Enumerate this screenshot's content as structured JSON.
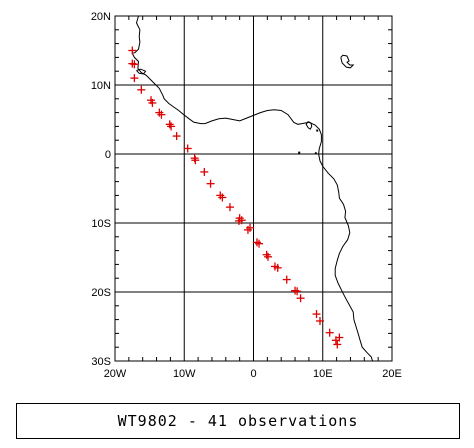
{
  "chart_data": {
    "type": "scatter",
    "title": "WT9802 - 41 observations",
    "xlabel": "",
    "ylabel": "",
    "xlim": [
      -20,
      20
    ],
    "ylim": [
      -30,
      20
    ],
    "grid": true,
    "xticks": [
      {
        "value": -20,
        "label": "20W"
      },
      {
        "value": -10,
        "label": "10W"
      },
      {
        "value": 0,
        "label": "0"
      },
      {
        "value": 10,
        "label": "10E"
      },
      {
        "value": 20,
        "label": "20E"
      }
    ],
    "yticks": [
      {
        "value": 20,
        "label": "20N"
      },
      {
        "value": 10,
        "label": "10N"
      },
      {
        "value": 0,
        "label": "0"
      },
      {
        "value": -10,
        "label": "10S"
      },
      {
        "value": -20,
        "label": "20S"
      },
      {
        "value": -30,
        "label": "30S"
      }
    ],
    "marker_color": "#dd0000",
    "series": [
      {
        "marker": "plus",
        "points": [
          [
            -17.5,
            15.0
          ],
          [
            -17.5,
            13.1
          ],
          [
            -17.2,
            13.0
          ],
          [
            -17.2,
            11.0
          ],
          [
            -16.2,
            9.3
          ],
          [
            -14.8,
            7.8
          ],
          [
            -14.6,
            7.4
          ],
          [
            -13.6,
            6.0
          ],
          [
            -13.3,
            5.7
          ],
          [
            -12.1,
            4.3
          ],
          [
            -11.9,
            4.0
          ],
          [
            -11.1,
            2.6
          ],
          [
            -9.5,
            0.8
          ],
          [
            -8.5,
            -0.6
          ],
          [
            -8.4,
            -0.9
          ],
          [
            -7.1,
            -2.6
          ],
          [
            -6.2,
            -4.3
          ],
          [
            -4.8,
            -6.0
          ],
          [
            -4.5,
            -6.3
          ],
          [
            -3.4,
            -7.7
          ],
          [
            -2.0,
            -9.3
          ],
          [
            -1.7,
            -9.6
          ],
          [
            -0.8,
            -11.0
          ],
          [
            0.5,
            -12.8
          ],
          [
            0.8,
            -13.0
          ],
          [
            1.9,
            -14.6
          ],
          [
            2.1,
            -14.9
          ],
          [
            3.1,
            -16.3
          ],
          [
            3.5,
            -16.5
          ],
          [
            4.8,
            -18.2
          ],
          [
            6.0,
            -19.8
          ],
          [
            6.3,
            -19.9
          ],
          [
            6.8,
            -20.9
          ],
          [
            9.1,
            -23.2
          ],
          [
            9.6,
            -24.2
          ],
          [
            11.0,
            -25.9
          ],
          [
            11.9,
            -27.0
          ],
          [
            12.1,
            -27.6
          ],
          [
            -2.1,
            -9.7
          ],
          [
            -0.5,
            -10.7
          ],
          [
            12.4,
            -26.6
          ]
        ]
      }
    ],
    "coastlines": [
      [
        [
          -16.6,
          20.0
        ],
        [
          -16.9,
          19.0
        ],
        [
          -16.4,
          18.0
        ],
        [
          -16.5,
          17.0
        ],
        [
          -16.4,
          16.2
        ],
        [
          -16.6,
          15.2
        ],
        [
          -17.1,
          14.7
        ],
        [
          -17.5,
          14.6
        ],
        [
          -17.2,
          14.0
        ],
        [
          -16.6,
          13.4
        ],
        [
          -16.7,
          12.4
        ],
        [
          -16.2,
          11.8
        ],
        [
          -15.5,
          11.4
        ],
        [
          -14.6,
          10.5
        ],
        [
          -13.6,
          9.5
        ],
        [
          -13.1,
          8.5
        ],
        [
          -12.9,
          8.0
        ],
        [
          -12.2,
          7.3
        ],
        [
          -11.5,
          6.8
        ],
        [
          -10.8,
          6.3
        ],
        [
          -10.2,
          5.8
        ],
        [
          -9.3,
          5.1
        ],
        [
          -8.6,
          4.6
        ],
        [
          -7.6,
          4.4
        ],
        [
          -7.0,
          4.4
        ],
        [
          -6.0,
          4.8
        ],
        [
          -5.0,
          5.1
        ],
        [
          -4.0,
          5.2
        ],
        [
          -3.0,
          5.0
        ],
        [
          -2.0,
          4.8
        ],
        [
          -1.0,
          5.2
        ],
        [
          0.0,
          5.6
        ],
        [
          1.0,
          6.0
        ],
        [
          2.0,
          6.3
        ],
        [
          3.0,
          6.4
        ],
        [
          4.0,
          6.3
        ],
        [
          5.0,
          5.7
        ],
        [
          5.8,
          4.6
        ],
        [
          6.4,
          4.3
        ],
        [
          7.0,
          4.4
        ],
        [
          8.0,
          4.6
        ],
        [
          8.9,
          4.2
        ],
        [
          9.5,
          3.6
        ],
        [
          9.8,
          2.8
        ],
        [
          9.8,
          1.8
        ],
        [
          9.5,
          0.8
        ],
        [
          9.4,
          0.0
        ],
        [
          9.6,
          -1.0
        ],
        [
          10.0,
          -1.8
        ],
        [
          10.8,
          -2.8
        ],
        [
          11.6,
          -3.6
        ],
        [
          12.1,
          -4.5
        ],
        [
          12.3,
          -5.5
        ],
        [
          12.4,
          -6.4
        ],
        [
          13.0,
          -7.3
        ],
        [
          13.3,
          -8.3
        ],
        [
          13.2,
          -9.2
        ],
        [
          13.7,
          -10.4
        ],
        [
          13.9,
          -11.4
        ],
        [
          13.6,
          -12.4
        ],
        [
          12.9,
          -13.4
        ],
        [
          12.4,
          -14.4
        ],
        [
          12.1,
          -15.4
        ],
        [
          11.8,
          -16.6
        ],
        [
          11.8,
          -17.6
        ],
        [
          12.2,
          -18.7
        ],
        [
          12.8,
          -19.9
        ],
        [
          13.3,
          -20.9
        ],
        [
          13.9,
          -22.0
        ],
        [
          14.4,
          -22.9
        ],
        [
          14.5,
          -24.0
        ],
        [
          14.8,
          -25.0
        ],
        [
          15.1,
          -26.0
        ],
        [
          15.4,
          -27.0
        ],
        [
          15.7,
          -28.0
        ],
        [
          16.4,
          -28.8
        ],
        [
          17.0,
          -29.4
        ],
        [
          17.2,
          -30.0
        ]
      ],
      [
        [
          -16.9,
          12.1
        ],
        [
          -16.3,
          12.3
        ],
        [
          -15.6,
          12.0
        ],
        [
          -15.9,
          11.6
        ],
        [
          -16.5,
          11.7
        ],
        [
          -16.9,
          12.1
        ]
      ],
      [
        [
          7.9,
          4.7
        ],
        [
          8.3,
          4.5
        ],
        [
          8.4,
          4.0
        ],
        [
          8.2,
          3.6
        ],
        [
          7.9,
          3.8
        ],
        [
          7.6,
          4.3
        ],
        [
          7.9,
          4.7
        ]
      ],
      [
        [
          12.6,
          14.0
        ],
        [
          12.9,
          14.3
        ],
        [
          13.5,
          14.2
        ],
        [
          13.8,
          13.5
        ],
        [
          13.5,
          13.3
        ],
        [
          13.9,
          12.9
        ],
        [
          14.4,
          12.9
        ],
        [
          14.0,
          12.5
        ],
        [
          13.4,
          12.6
        ],
        [
          12.8,
          13.2
        ],
        [
          12.6,
          14.0
        ]
      ]
    ],
    "island_dots": [
      [
        6.6,
        0.2
      ],
      [
        9.0,
        0.1
      ],
      [
        9.2,
        3.4
      ]
    ]
  }
}
